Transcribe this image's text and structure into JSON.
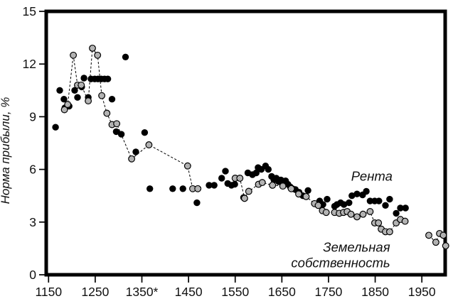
{
  "chart_data": {
    "type": "scatter",
    "title": "",
    "xlabel": "",
    "ylabel": "Норма прибыли, %",
    "xlim": [
      1145,
      2000
    ],
    "ylim": [
      0,
      15
    ],
    "grid": false,
    "legend": "inline-annotations",
    "background": "#ffffff",
    "foreground": "#000000",
    "x_ticks": [
      {
        "v": 1150,
        "label": "1150"
      },
      {
        "v": 1250,
        "label": "1250"
      },
      {
        "v": 1350,
        "label": "1350*"
      },
      {
        "v": 1450,
        "label": "1450"
      },
      {
        "v": 1550,
        "label": "1550"
      },
      {
        "v": 1650,
        "label": "1650"
      },
      {
        "v": 1750,
        "label": "1750"
      },
      {
        "v": 1850,
        "label": "1850"
      },
      {
        "v": 1950,
        "label": "1950"
      }
    ],
    "y_ticks": [
      {
        "v": 0,
        "label": "0"
      },
      {
        "v": 3,
        "label": "3"
      },
      {
        "v": 6,
        "label": "6"
      },
      {
        "v": 9,
        "label": "9"
      },
      {
        "v": 12,
        "label": "12"
      },
      {
        "v": 15,
        "label": "15"
      }
    ],
    "series": [
      {
        "name": "Рента",
        "marker": "filled-circle",
        "color": "#000000",
        "line": "none",
        "points": [
          [
            1165,
            8.4
          ],
          [
            1174,
            10.5
          ],
          [
            1183,
            10.0
          ],
          [
            1185,
            9.5
          ],
          [
            1194,
            9.6
          ],
          [
            1206,
            10.5
          ],
          [
            1212,
            10.1
          ],
          [
            1221,
            10.7
          ],
          [
            1226,
            11.2
          ],
          [
            1235,
            10.1
          ],
          [
            1241,
            11.15
          ],
          [
            1249,
            11.15
          ],
          [
            1256,
            11.15
          ],
          [
            1263,
            11.15
          ],
          [
            1270,
            11.15
          ],
          [
            1277,
            11.15
          ],
          [
            1286,
            10.0
          ],
          [
            1295,
            8.15
          ],
          [
            1306,
            8.0
          ],
          [
            1315,
            12.4
          ],
          [
            1337,
            7.0
          ],
          [
            1356,
            8.1
          ],
          [
            1367,
            4.9
          ],
          [
            1416,
            4.9
          ],
          [
            1438,
            4.9
          ],
          [
            1468,
            4.1
          ],
          [
            1494,
            5.1
          ],
          [
            1505,
            5.1
          ],
          [
            1521,
            5.5
          ],
          [
            1529,
            5.9
          ],
          [
            1534,
            5.2
          ],
          [
            1542,
            5.1
          ],
          [
            1549,
            5.15
          ],
          [
            1568,
            4.4
          ],
          [
            1577,
            5.8
          ],
          [
            1587,
            5.7
          ],
          [
            1595,
            5.8
          ],
          [
            1599,
            6.1
          ],
          [
            1606,
            6.0
          ],
          [
            1615,
            6.2
          ],
          [
            1621,
            6.0
          ],
          [
            1628,
            5.6
          ],
          [
            1633,
            5.4
          ],
          [
            1638,
            5.5
          ],
          [
            1643,
            5.3
          ],
          [
            1648,
            5.4
          ],
          [
            1653,
            5.2
          ],
          [
            1658,
            5.35
          ],
          [
            1663,
            5.15
          ],
          [
            1668,
            5.0
          ],
          [
            1673,
            4.9
          ],
          [
            1679,
            4.85
          ],
          [
            1687,
            4.7
          ],
          [
            1695,
            4.5
          ],
          [
            1706,
            4.8
          ],
          [
            1731,
            4.2
          ],
          [
            1738,
            4.0
          ],
          [
            1747,
            4.3
          ],
          [
            1763,
            3.9
          ],
          [
            1768,
            4.0
          ],
          [
            1776,
            4.1
          ],
          [
            1783,
            4.0
          ],
          [
            1794,
            4.1
          ],
          [
            1800,
            4.5
          ],
          [
            1811,
            4.6
          ],
          [
            1823,
            4.55
          ],
          [
            1831,
            4.75
          ],
          [
            1839,
            4.2
          ],
          [
            1849,
            4.2
          ],
          [
            1858,
            4.2
          ],
          [
            1872,
            3.95
          ],
          [
            1881,
            4.3
          ],
          [
            1895,
            3.5
          ],
          [
            1904,
            3.8
          ],
          [
            1915,
            3.8
          ]
        ]
      },
      {
        "name": "Земельная собственность",
        "marker": "hatched-circle",
        "color": "#000000",
        "line": "dashed",
        "gap_after_x": [
          1470,
          1914
        ],
        "points": [
          [
            1184,
            9.4
          ],
          [
            1191,
            9.7
          ],
          [
            1203,
            12.5
          ],
          [
            1212,
            10.8
          ],
          [
            1220,
            10.8
          ],
          [
            1235,
            9.9
          ],
          [
            1244,
            12.9
          ],
          [
            1255,
            12.5
          ],
          [
            1264,
            10.2
          ],
          [
            1275,
            9.2
          ],
          [
            1286,
            8.55
          ],
          [
            1296,
            8.6
          ],
          [
            1328,
            6.6
          ],
          [
            1365,
            7.4
          ],
          [
            1448,
            6.2
          ],
          [
            1459,
            4.9
          ],
          [
            1470,
            4.9
          ],
          [
            1550,
            5.5
          ],
          [
            1560,
            5.5
          ],
          [
            1570,
            4.35
          ],
          [
            1579,
            4.75
          ],
          [
            1600,
            5.15
          ],
          [
            1608,
            5.25
          ],
          [
            1630,
            5.1
          ],
          [
            1652,
            5.05
          ],
          [
            1670,
            4.9
          ],
          [
            1686,
            4.6
          ],
          [
            1702,
            4.45
          ],
          [
            1720,
            4.05
          ],
          [
            1728,
            3.95
          ],
          [
            1737,
            3.65
          ],
          [
            1745,
            3.55
          ],
          [
            1763,
            3.55
          ],
          [
            1773,
            3.5
          ],
          [
            1782,
            3.55
          ],
          [
            1790,
            3.6
          ],
          [
            1798,
            3.45
          ],
          [
            1811,
            3.3
          ],
          [
            1824,
            3.45
          ],
          [
            1839,
            3.6
          ],
          [
            1849,
            2.95
          ],
          [
            1857,
            2.95
          ],
          [
            1863,
            2.6
          ],
          [
            1872,
            2.45
          ],
          [
            1881,
            2.45
          ],
          [
            1895,
            2.95
          ],
          [
            1904,
            3.15
          ],
          [
            1914,
            3.05
          ],
          [
            1965,
            2.25
          ],
          [
            1980,
            1.85
          ],
          [
            1988,
            2.35
          ],
          [
            1996,
            2.25
          ],
          [
            2001,
            1.65
          ]
        ]
      }
    ],
    "annotations": [
      {
        "series": "Рента",
        "lines": [
          "Рента"
        ],
        "x": 1887,
        "y": 5.35
      },
      {
        "series": "Земельная собственность",
        "lines": [
          "Земельная",
          "собственность"
        ],
        "x": 1882,
        "y": 1.32
      }
    ]
  }
}
